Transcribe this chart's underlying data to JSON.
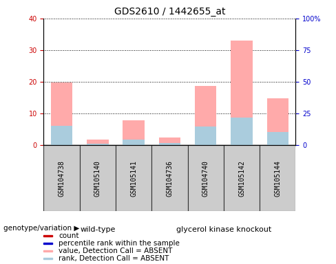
{
  "title": "GDS2610 / 1442655_at",
  "samples": [
    "GSM104738",
    "GSM105140",
    "GSM105141",
    "GSM104736",
    "GSM104740",
    "GSM105142",
    "GSM105144"
  ],
  "wt_count": 3,
  "gk_count": 4,
  "ylim_left": [
    0,
    40
  ],
  "ylim_right": [
    0,
    100
  ],
  "yticks_left": [
    0,
    10,
    20,
    30,
    40
  ],
  "yticks_right": [
    0,
    25,
    50,
    75,
    100
  ],
  "ytick_labels_right": [
    "0",
    "25",
    "50",
    "75",
    "100%"
  ],
  "absent_pink_values": [
    19.8,
    1.7,
    7.8,
    2.5,
    18.7,
    33.0,
    14.8
  ],
  "absent_blue_values": [
    6.2,
    0.5,
    1.8,
    0.8,
    5.8,
    8.8,
    4.2
  ],
  "bar_width": 0.6,
  "left_tick_color": "#cc0000",
  "right_tick_color": "#0000cc",
  "pink_color": "#ffaaaa",
  "blue_color": "#aaccdd",
  "wt_color": "#aaffaa",
  "gk_color": "#44dd44",
  "gray_color": "#cccccc",
  "wt_label": "wild-type",
  "gk_label": "glycerol kinase knockout",
  "genotype_label": "genotype/variation",
  "legend_labels": [
    "count",
    "percentile rank within the sample",
    "value, Detection Call = ABSENT",
    "rank, Detection Call = ABSENT"
  ],
  "legend_colors": [
    "#cc0000",
    "#0000cc",
    "#ffaaaa",
    "#aaccdd"
  ],
  "legend_fontsize": 7.5,
  "title_fontsize": 10,
  "tick_fontsize": 7,
  "group_fontsize": 8
}
